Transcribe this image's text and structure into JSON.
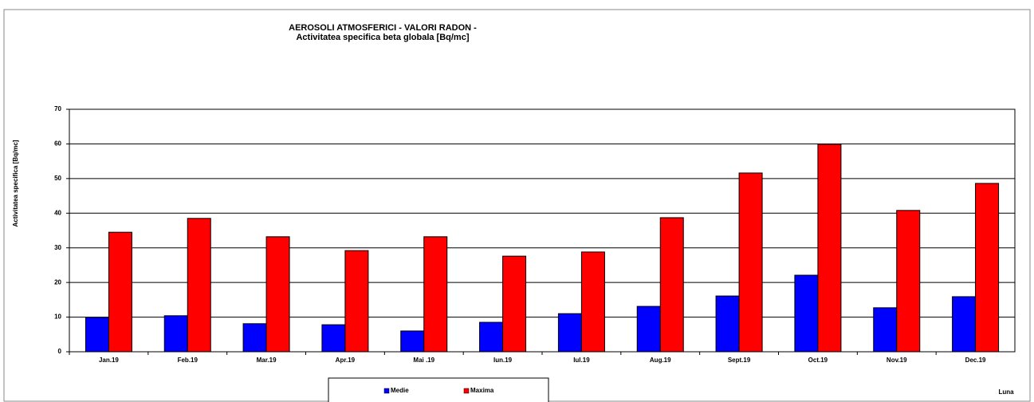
{
  "chart_data": {
    "type": "bar",
    "title": "AEROSOLI ATMOSFERICI - VALORI RADON -",
    "subtitle": "Activitatea specifica beta globala [Bq/mc]",
    "x_label": "Luna",
    "y_label": "Activitatea specifica [Bq/mc]",
    "categories": [
      "Jan.19",
      "Feb.19",
      "Mar.19",
      "Apr.19",
      "Mai .19",
      "Iun.19",
      "Iul.19",
      "Aug.19",
      "Sept.19",
      "Oct.19",
      "Nov.19",
      "Dec.19"
    ],
    "series": [
      {
        "name": "Medie",
        "color": "#0000ff",
        "values": [
          9.9,
          10.4,
          8.1,
          7.8,
          6,
          8.5,
          11,
          13.1,
          16.1,
          22.1,
          12.7,
          15.9
        ]
      },
      {
        "name": "Maxima",
        "color": "#ff0000",
        "values": [
          34.5,
          38.5,
          33.2,
          29.2,
          33.2,
          27.6,
          28.8,
          38.7,
          51.6,
          59.9,
          40.8,
          48.6
        ]
      }
    ],
    "ylim": [
      0,
      70
    ],
    "yticks": [
      0,
      10,
      20,
      30,
      40,
      50,
      60,
      70
    ],
    "grid": true,
    "legend": "bottom"
  }
}
